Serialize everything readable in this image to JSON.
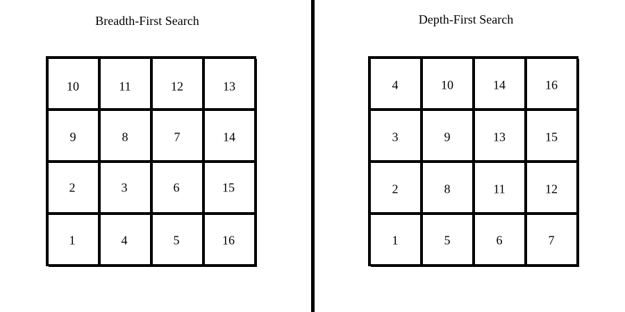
{
  "panels": [
    {
      "title": "Breadth-First Search",
      "rows": [
        [
          "10",
          "11",
          "12",
          "13"
        ],
        [
          "9",
          "8",
          "7",
          "14"
        ],
        [
          "2",
          "3",
          "6",
          "15"
        ],
        [
          "1",
          "4",
          "5",
          "16"
        ]
      ]
    },
    {
      "title": "Depth-First Search",
      "rows": [
        [
          "4",
          "10",
          "14",
          "16"
        ],
        [
          "3",
          "9",
          "13",
          "15"
        ],
        [
          "2",
          "8",
          "11",
          "12"
        ],
        [
          "1",
          "5",
          "6",
          "7"
        ]
      ]
    }
  ]
}
